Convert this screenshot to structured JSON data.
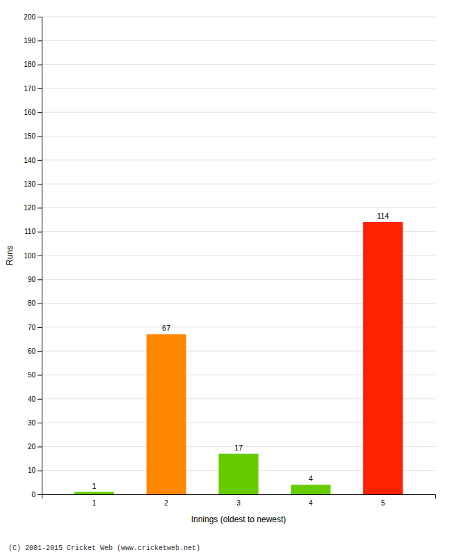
{
  "chart_data": {
    "type": "bar",
    "categories": [
      "1",
      "2",
      "3",
      "4",
      "5"
    ],
    "values": [
      1,
      67,
      17,
      4,
      114
    ],
    "colors": [
      "#66cc00",
      "#ff8800",
      "#66cc00",
      "#66cc00",
      "#ff2200"
    ],
    "xlabel": "Innings (oldest to newest)",
    "ylabel": "Runs",
    "ylim": [
      0,
      200
    ],
    "yticks": [
      0,
      10,
      20,
      30,
      40,
      50,
      60,
      70,
      80,
      90,
      100,
      110,
      120,
      130,
      140,
      150,
      160,
      170,
      180,
      190,
      200
    ],
    "grid": true,
    "data_labels": true,
    "footer": "(C) 2001-2015 Cricket Web (www.cricketweb.net)"
  }
}
